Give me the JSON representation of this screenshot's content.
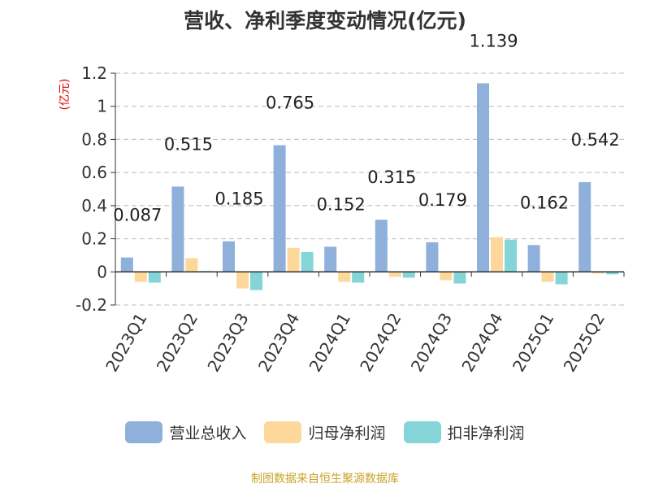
{
  "chart_data": {
    "type": "bar",
    "title": "营收、净利季度变动情况(亿元)",
    "ylabel": "(亿元)",
    "ylim": [
      -0.2,
      1.2
    ],
    "yticks": [
      "-0.2",
      "0",
      "0.2",
      "0.4",
      "0.6",
      "0.8",
      "1",
      "1.2"
    ],
    "grid": true,
    "legend_position": "bottom",
    "categories": [
      "2023Q1",
      "2023Q2",
      "2023Q3",
      "2023Q4",
      "2024Q1",
      "2024Q2",
      "2024Q3",
      "2024Q4",
      "2025Q1",
      "2025Q2"
    ],
    "series": [
      {
        "name": "营业总收入",
        "color": "#8eb0db",
        "values": [
          0.087,
          0.515,
          0.185,
          0.765,
          0.152,
          0.315,
          0.179,
          1.139,
          0.162,
          0.542
        ],
        "labels": [
          "0.087",
          "0.515",
          "0.185",
          "0.765",
          "0.152",
          "0.315",
          "0.179",
          "1.139",
          "0.162",
          "0.542"
        ]
      },
      {
        "name": "归母净利润",
        "color": "#fdd89a",
        "values": [
          -0.06,
          0.083,
          -0.1,
          0.145,
          -0.06,
          -0.03,
          -0.05,
          0.21,
          -0.06,
          -0.01
        ]
      },
      {
        "name": "扣非净利润",
        "color": "#85d4d8",
        "values": [
          -0.065,
          0.005,
          -0.11,
          0.12,
          -0.065,
          -0.035,
          -0.07,
          0.195,
          -0.075,
          -0.015
        ]
      }
    ]
  },
  "source_note": "制图数据来自恒生聚源数据库"
}
